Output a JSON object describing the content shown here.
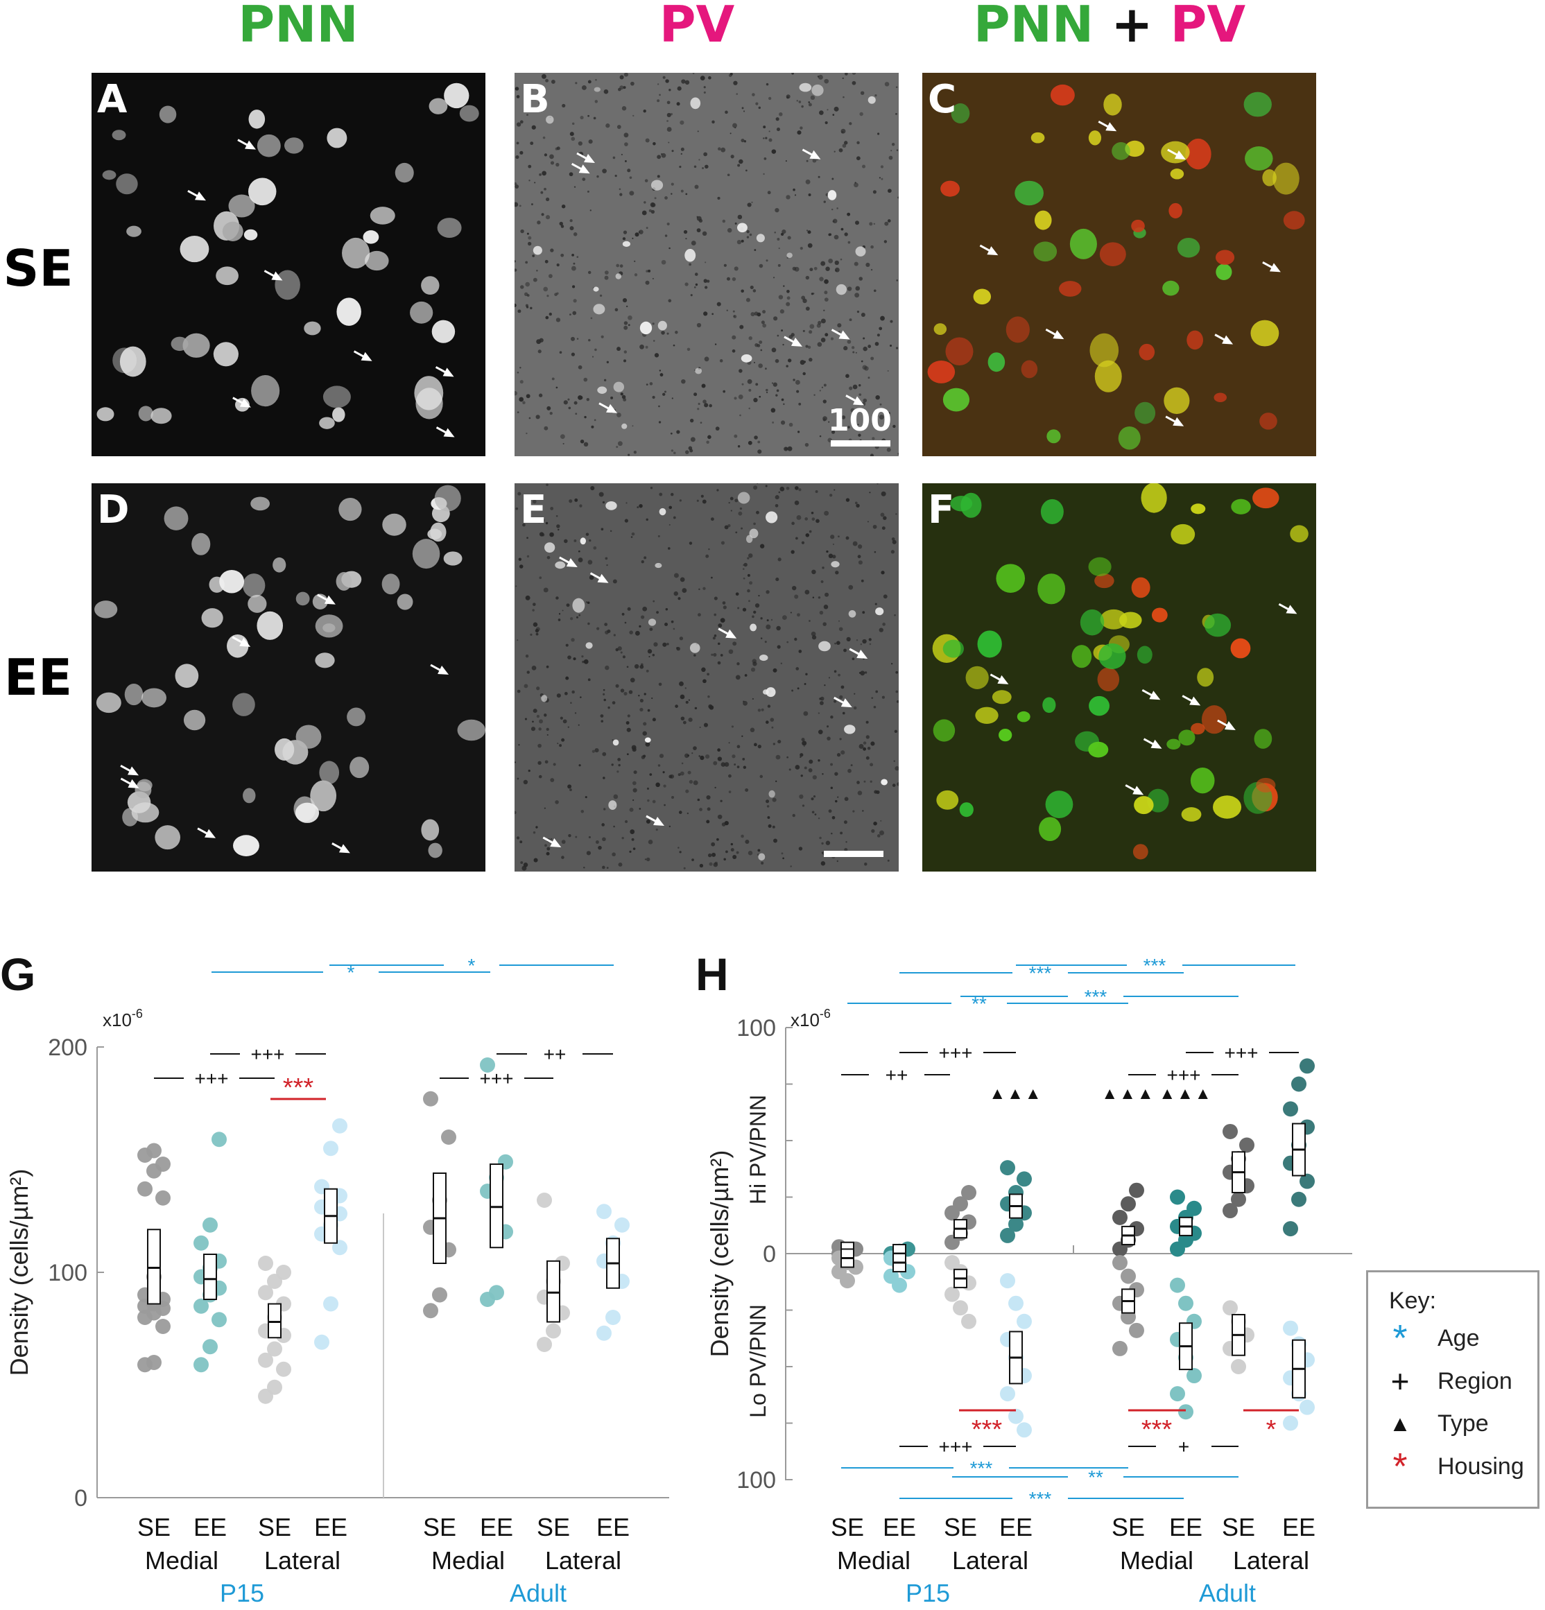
{
  "headers": {
    "pnn": "PNN",
    "pv": "PV",
    "merge_left": "PNN",
    "merge_plus": "+",
    "merge_right": "PV"
  },
  "rows": {
    "se": "SE",
    "ee": "EE"
  },
  "panels": {
    "a": "A",
    "b": "B",
    "c": "C",
    "d": "D",
    "e": "E",
    "f": "F"
  },
  "scale_label": "100",
  "colors": {
    "pnn": "#35a83a",
    "pv": "#e5177d",
    "age": "#1e9ad6",
    "region": "#111111",
    "housing": "#d2232a",
    "se_medial": "#9b9b9b",
    "ee_medial": "#7fc3c3",
    "se_lateral": "#cfcfcf",
    "ee_lateral": "#c6e6f5"
  },
  "chart_data": [
    {
      "panel": "G",
      "type": "scatter",
      "exponent": "x10",
      "exponent_power": "-6",
      "ylabel": "Density (cells/µm²)",
      "ylim": [
        0,
        200
      ],
      "yticks": [
        "0",
        "100",
        "200"
      ],
      "groups": [
        {
          "age": "P15",
          "region": "Medial",
          "housing": "SE",
          "mean": 102,
          "sem_low": 86,
          "sem_high": 119,
          "values": [
            59,
            60,
            76,
            80,
            82,
            84,
            85,
            86,
            88,
            90,
            98,
            133,
            137,
            145,
            148,
            152,
            154
          ]
        },
        {
          "age": "P15",
          "region": "Medial",
          "housing": "EE",
          "mean": 97,
          "sem_low": 88,
          "sem_high": 108,
          "values": [
            59,
            67,
            79,
            85,
            90,
            93,
            98,
            102,
            105,
            113,
            121,
            159
          ]
        },
        {
          "age": "P15",
          "region": "Lateral",
          "housing": "SE",
          "mean": 78,
          "sem_low": 71,
          "sem_high": 86,
          "values": [
            45,
            49,
            57,
            61,
            66,
            72,
            74,
            80,
            86,
            91,
            96,
            100,
            104
          ]
        },
        {
          "age": "P15",
          "region": "Lateral",
          "housing": "EE",
          "mean": 125,
          "sem_low": 113,
          "sem_high": 137,
          "values": [
            69,
            86,
            111,
            117,
            121,
            126,
            129,
            131,
            134,
            138,
            155,
            165
          ]
        },
        {
          "age": "Adult",
          "region": "Medial",
          "housing": "SE",
          "mean": 124,
          "sem_low": 104,
          "sem_high": 144,
          "values": [
            83,
            90,
            110,
            120,
            132,
            160,
            177
          ]
        },
        {
          "age": "Adult",
          "region": "Medial",
          "housing": "EE",
          "mean": 129,
          "sem_low": 111,
          "sem_high": 148,
          "values": [
            88,
            91,
            118,
            136,
            142,
            149,
            192
          ]
        },
        {
          "age": "Adult",
          "region": "Lateral",
          "housing": "SE",
          "mean": 91,
          "sem_low": 78,
          "sem_high": 105,
          "values": [
            68,
            74,
            82,
            89,
            96,
            104,
            132
          ]
        },
        {
          "age": "Adult",
          "region": "Lateral",
          "housing": "EE",
          "mean": 104,
          "sem_low": 93,
          "sem_high": 115,
          "values": [
            73,
            80,
            96,
            105,
            113,
            121,
            127
          ]
        }
      ],
      "significance": [
        {
          "kind": "age",
          "label": "*"
        },
        {
          "kind": "age",
          "label": "*"
        },
        {
          "kind": "region",
          "label": "+++"
        },
        {
          "kind": "region",
          "label": "+++"
        },
        {
          "kind": "region",
          "label": "++"
        },
        {
          "kind": "region",
          "label": "+++"
        },
        {
          "kind": "housing",
          "label": "***"
        }
      ]
    },
    {
      "panel": "H",
      "type": "scatter",
      "exponent": "x10",
      "exponent_power": "-6",
      "ylabel": "Density (cells/µm²)",
      "ylabel_top": "Hi PV/PNN",
      "ylabel_bottom": "Lo PV/PNN",
      "ylim": [
        -100,
        100
      ],
      "yticks": [
        "100",
        "0",
        "100"
      ],
      "groups": [
        {
          "age": "P15",
          "region": "Medial",
          "housing": "SE",
          "hi": {
            "mean": 1,
            "values": [
              0,
              1,
              2,
              3
            ]
          },
          "lo": {
            "mean": 2,
            "values": [
              2,
              4,
              6,
              8,
              12
            ]
          }
        },
        {
          "age": "P15",
          "region": "Medial",
          "housing": "EE",
          "hi": {
            "mean": 0,
            "values": [
              0,
              1,
              2
            ]
          },
          "lo": {
            "mean": 4,
            "values": [
              2,
              5,
              8,
              10,
              14
            ]
          }
        },
        {
          "age": "P15",
          "region": "Lateral",
          "housing": "SE",
          "hi": {
            "mean": 11,
            "values": [
              5,
              9,
              14,
              18,
              22,
              27
            ]
          },
          "lo": {
            "mean": 11,
            "values": [
              4,
              8,
              13,
              18,
              24,
              30
            ]
          }
        },
        {
          "age": "P15",
          "region": "Lateral",
          "housing": "EE",
          "hi": {
            "mean": 21,
            "values": [
              8,
              13,
              18,
              22,
              27,
              33,
              38
            ]
          },
          "lo": {
            "mean": 46,
            "values": [
              12,
              22,
              30,
              38,
              46,
              54,
              62,
              72,
              78
            ]
          }
        },
        {
          "age": "Adult",
          "region": "Medial",
          "housing": "SE",
          "hi": {
            "mean": 8,
            "values": [
              2,
              6,
              11,
              16,
              22,
              28
            ]
          },
          "lo": {
            "mean": 21,
            "values": [
              4,
              10,
              16,
              22,
              28,
              34,
              42
            ]
          }
        },
        {
          "age": "Adult",
          "region": "Medial",
          "housing": "EE",
          "hi": {
            "mean": 12,
            "values": [
              2,
              6,
              9,
              12,
              16,
              20,
              25
            ]
          },
          "lo": {
            "mean": 41,
            "values": [
              14,
              22,
              30,
              38,
              46,
              54,
              62,
              70
            ]
          }
        },
        {
          "age": "Adult",
          "region": "Lateral",
          "housing": "SE",
          "hi": {
            "mean": 36,
            "values": [
              19,
              24,
              30,
              36,
              42,
              48,
              54
            ]
          },
          "lo": {
            "mean": 36,
            "values": [
              24,
              30,
              36,
              42,
              50
            ]
          }
        },
        {
          "age": "Adult",
          "region": "Lateral",
          "housing": "EE",
          "hi": {
            "mean": 46,
            "values": [
              11,
              24,
              32,
              40,
              48,
              56,
              64,
              75,
              83
            ]
          },
          "lo": {
            "mean": 51,
            "values": [
              33,
              40,
              47,
              55,
              62,
              68,
              75
            ]
          }
        }
      ],
      "significance": [
        {
          "kind": "age",
          "label": "***"
        },
        {
          "kind": "age",
          "label": "***"
        },
        {
          "kind": "age",
          "label": "**"
        },
        {
          "kind": "age",
          "label": "***"
        },
        {
          "kind": "region",
          "label": "+++"
        },
        {
          "kind": "region",
          "label": "++"
        },
        {
          "kind": "region",
          "label": "+++"
        },
        {
          "kind": "region",
          "label": "+++"
        },
        {
          "kind": "type",
          "label": "▲▲▲"
        },
        {
          "kind": "type",
          "label": "▲▲▲"
        },
        {
          "kind": "type",
          "label": "▲▲▲"
        },
        {
          "kind": "housing",
          "label": "***"
        },
        {
          "kind": "housing",
          "label": "***"
        },
        {
          "kind": "housing",
          "label": "*"
        },
        {
          "kind": "region",
          "label": "+++"
        },
        {
          "kind": "region",
          "label": "+"
        },
        {
          "kind": "age",
          "label": "***"
        },
        {
          "kind": "age",
          "label": "**"
        },
        {
          "kind": "age",
          "label": "***"
        }
      ]
    }
  ],
  "x_labels": {
    "housing": [
      "SE",
      "EE",
      "SE",
      "EE",
      "SE",
      "EE",
      "SE",
      "EE"
    ],
    "region": [
      "Medial",
      "Lateral",
      "Medial",
      "Lateral"
    ],
    "age": [
      "P15",
      "Adult"
    ]
  },
  "key": {
    "title": "Key:",
    "items": [
      {
        "symbol": "*",
        "label": "Age",
        "color": "#1e9ad6"
      },
      {
        "symbol": "+",
        "label": "Region",
        "color": "#111111"
      },
      {
        "symbol": "▲",
        "label": "Type",
        "color": "#111111"
      },
      {
        "symbol": "*",
        "label": "Housing",
        "color": "#d2232a"
      }
    ]
  }
}
